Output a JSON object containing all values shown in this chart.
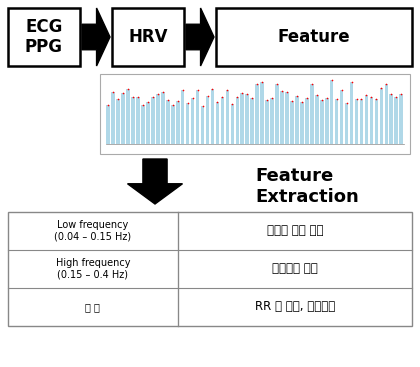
{
  "bg_color": "#ffffff",
  "box1_text": "ECG\nPPG",
  "box2_text": "HRV",
  "box3_text": "Feature",
  "feature_extraction_text": "Feature\nExtraction",
  "table_rows": [
    [
      "Low frequency\n(0.04 – 0.15 Hz)",
      "부교감 신경 항진"
    ],
    [
      "High frequency\n(0.15 – 0.4 Hz)",
      "교감신경 항진"
    ],
    [
      "그 외",
      "RR 값 평균, 표준편차"
    ]
  ],
  "box_color": "#ffffff",
  "box_edge_color": "#000000",
  "arrow_color": "#000000",
  "text_color": "#000000",
  "table_edge_color": "#888888",
  "chart_bar_color": "#b0d8e8",
  "chart_dot_color": "#ff0000",
  "chart_bg": "#ffffff",
  "chart_border": "#aaaaaa"
}
